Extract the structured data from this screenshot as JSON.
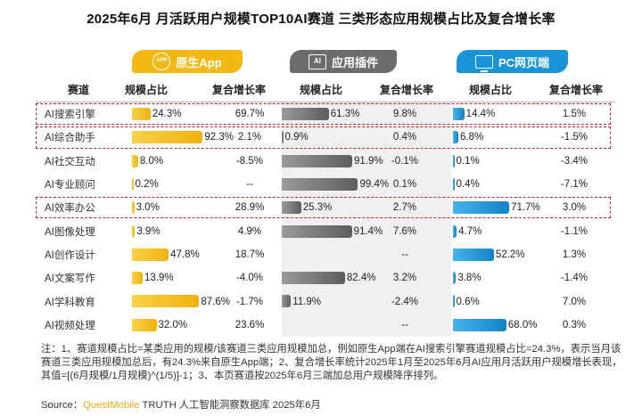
{
  "title": "2025年6月 月活跃用户规模TOP10AI赛道 三类形态应用规模占比及复合增长率",
  "banners": {
    "app": {
      "label": "原生App",
      "icon": "app-icon",
      "icon_text": "APP",
      "color": "#f3b814"
    },
    "plugin": {
      "label": "应用插件",
      "icon": "ai-plugin-icon",
      "icon_text": "AI",
      "color": "#6c6c6c"
    },
    "pc": {
      "label": "PC网页端",
      "icon": "monitor-icon",
      "color": "#1994d6"
    }
  },
  "headers": {
    "category": "赛道",
    "app_share": "规模占比",
    "app_growth": "复合增长率",
    "plugin_share": "规模占比",
    "plugin_growth": "复合增长率",
    "pc_share": "规模占比",
    "pc_growth": "复合增长率"
  },
  "chart_data": {
    "type": "bar",
    "categories": [
      "AI搜索引擎",
      "AI综合助手",
      "AI社交互动",
      "AI专业顾问",
      "AI效率办公",
      "AI图像处理",
      "AI创作设计",
      "AI文案写作",
      "AI学科教育",
      "AI视频处理"
    ],
    "series": [
      {
        "name": "原生App",
        "values": [
          24.3,
          92.3,
          8.0,
          0.2,
          3.0,
          3.9,
          47.8,
          13.9,
          87.6,
          32.0
        ],
        "labels": [
          "24.3%",
          "92.3%",
          "8.0%",
          "0.2%",
          "3.0%",
          "3.9%",
          "47.8%",
          "13.9%",
          "87.6%",
          "32.0%"
        ],
        "growth": [
          "69.7%",
          "2.1%",
          "-8.5%",
          "--",
          "28.9%",
          "4.9%",
          "18.7%",
          "-4.0%",
          "-1.7%",
          "23.6%"
        ]
      },
      {
        "name": "应用插件",
        "values": [
          61.3,
          0.9,
          91.9,
          99.4,
          25.3,
          91.4,
          0,
          82.4,
          11.9,
          0
        ],
        "labels": [
          "61.3%",
          "0.9%",
          "91.9%",
          "99.4%",
          "25.3%",
          "91.4%",
          "",
          "82.4%",
          "11.9%",
          ""
        ],
        "growth": [
          "9.8%",
          "0.4%",
          "-0.1%",
          "0.1%",
          "2.7%",
          "7.6%",
          "--",
          "3.2%",
          "-2.4%",
          "--"
        ]
      },
      {
        "name": "PC网页端",
        "values": [
          14.4,
          6.8,
          0.1,
          0.4,
          71.7,
          4.7,
          52.2,
          3.8,
          0.6,
          68.0
        ],
        "labels": [
          "14.4%",
          "6.8%",
          "0.1%",
          "0.4%",
          "71.7%",
          "4.7%",
          "52.2%",
          "3.8%",
          "0.6%",
          "68.0%"
        ],
        "growth": [
          "1.5%",
          "-1.5%",
          "-3.4%",
          "-7.1%",
          "3.0%",
          "-1.1%",
          "1.3%",
          "-1.4%",
          "7.0%",
          "0.3%"
        ]
      }
    ],
    "ylim": [
      0,
      100
    ],
    "colors": {
      "app": "#f3b814",
      "plugin": "#6c6c6c",
      "pc": "#1994d6",
      "highlight": "#c0262c"
    },
    "highlighted_rows": [
      0,
      1,
      4
    ]
  },
  "note": "注：1、赛道规模占比=某类应用的规模/该赛道三类应用规模加总，例如原生App端在AI搜索引擎赛道规模占比=24.3%，表示当月该赛道三类应用规模加总后，有24.3%来自原生App端；2、复合增长率统计2025年1月至2025年6月AI应用月活跃用户规模增长表现，其值=[(6月规模/1月规模)^(1/5)]-1；3、本页赛道按2025年6月三端加总用户规模降序排列。",
  "source": {
    "prefix": "Source：",
    "brand": "QuestMobile",
    "rest": " TRUTH 人工智能洞察数据库 2025年6月"
  }
}
